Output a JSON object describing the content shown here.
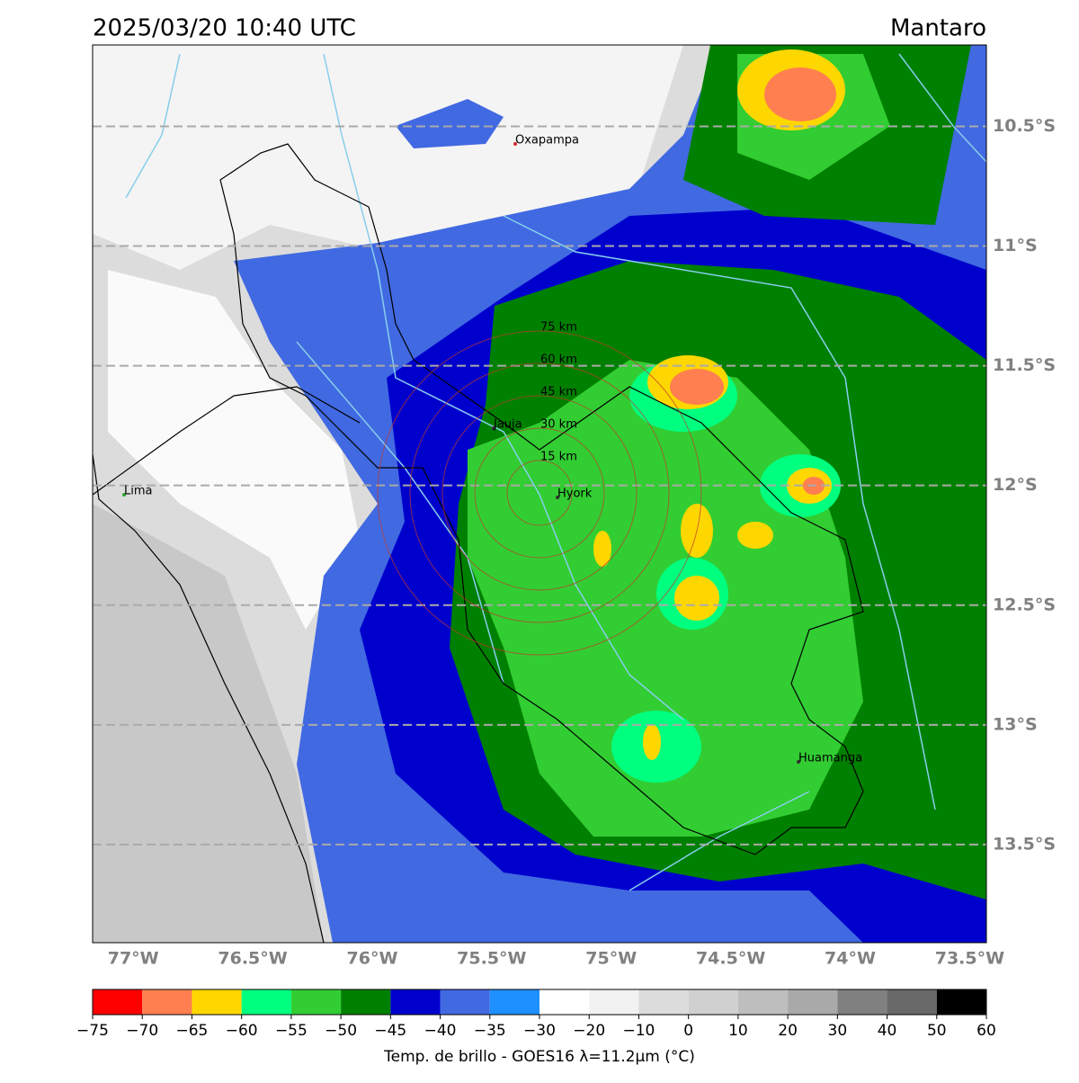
{
  "header": {
    "title": "2025/03/20 10:40 UTC",
    "region": "Mantaro"
  },
  "map": {
    "xlim": [
      -77.17,
      -73.43
    ],
    "ylim": [
      -13.91,
      -10.16
    ],
    "grid": true,
    "xticks": [
      {
        "value": -77,
        "label": "77°W"
      },
      {
        "value": -76.5,
        "label": "76.5°W"
      },
      {
        "value": -76,
        "label": "76°W"
      },
      {
        "value": -75.5,
        "label": "75.5°W"
      },
      {
        "value": -75,
        "label": "75°W"
      },
      {
        "value": -74.5,
        "label": "74.5°W"
      },
      {
        "value": -74,
        "label": "74°W"
      },
      {
        "value": -73.5,
        "label": "73.5°W"
      }
    ],
    "yticks": [
      {
        "value": -10.5,
        "label": "10.5°S"
      },
      {
        "value": -11,
        "label": "11°S"
      },
      {
        "value": -11.5,
        "label": "11.5°S"
      },
      {
        "value": -12,
        "label": "12°S"
      },
      {
        "value": -12.5,
        "label": "12.5°S"
      },
      {
        "value": -13,
        "label": "13°S"
      },
      {
        "value": -13.5,
        "label": "13.5°S"
      }
    ],
    "places": [
      "Oxapampa",
      "Lima",
      "Jauja",
      "Hyork",
      "Huamanga"
    ],
    "rings": [
      "15 km",
      "30 km",
      "45 km",
      "60 km",
      "75 km"
    ]
  },
  "colorbar": {
    "ticks": [
      {
        "value": -75,
        "label": "−75"
      },
      {
        "value": -70,
        "label": "−70"
      },
      {
        "value": -65,
        "label": "−65"
      },
      {
        "value": -60,
        "label": "−60"
      },
      {
        "value": -55,
        "label": "−55"
      },
      {
        "value": -50,
        "label": "−50"
      },
      {
        "value": -45,
        "label": "−45"
      },
      {
        "value": -40,
        "label": "−40"
      },
      {
        "value": -35,
        "label": "−35"
      },
      {
        "value": -30,
        "label": "−30"
      },
      {
        "value": -20,
        "label": "−20"
      },
      {
        "value": -10,
        "label": "−10"
      },
      0,
      10,
      20,
      30,
      40,
      50,
      60
    ],
    "colors": [
      "#ff0000",
      "#ff7f50",
      "#ffd700",
      "#00ff7f",
      "#32cd32",
      "#008000",
      "#0000cd",
      "#4169e1",
      "#1e90ff",
      "#ffffff",
      "#f2f2f2",
      "#dcdcdc",
      "#d0d0d0",
      "#bebebe",
      "#a9a9a9",
      "#808080",
      "#696969",
      "#000000"
    ],
    "label": "Temp. de brillo - GOES16 λ=11.2μm (°C)"
  }
}
